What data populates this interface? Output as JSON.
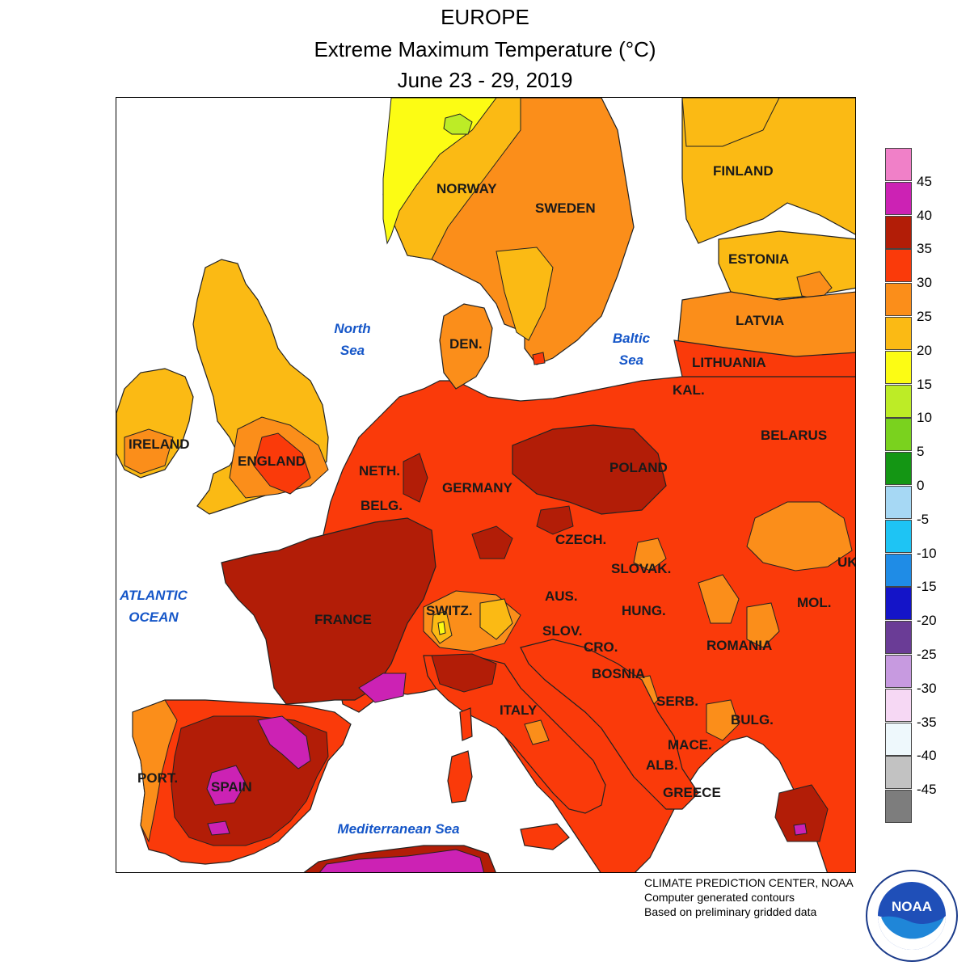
{
  "header": {
    "region": "EUROPE",
    "title": "Extreme Maximum Temperature (°C)",
    "period": "June 23 - 29, 2019"
  },
  "map": {
    "countries": [
      "NORWAY",
      "SWEDEN",
      "FINLAND",
      "ESTONIA",
      "LATVIA",
      "LITHUANIA",
      "KAL.",
      "DEN.",
      "IRELAND",
      "ENGLAND",
      "NETH.",
      "BELG.",
      "GERMANY",
      "POLAND",
      "BELARUS",
      "UK",
      "CZECH.",
      "SLOVAK.",
      "AUS.",
      "SWITZ.",
      "FRANCE",
      "HUNG.",
      "MOL.",
      "ROMANIA",
      "SLOV.",
      "CRO.",
      "BOSNIA",
      "SERB.",
      "BULG.",
      "MACE.",
      "ALB.",
      "GREECE",
      "ITALY",
      "PORT.",
      "SPAIN"
    ],
    "seas": [
      "North Sea",
      "Baltic Sea",
      "ATLANTIC OCEAN",
      "Mediterranean Sea"
    ],
    "colors": {
      "above_40": "#cc22b4",
      "35_40": "#b21d07",
      "30_35": "#fa3a0a",
      "25_30": "#fb8e1a",
      "20_25": "#fbba14",
      "15_20": "#fcfc14",
      "10_15": "#bdec26",
      "water": "#ffffff"
    }
  },
  "legend": {
    "labels": [
      "45",
      "40",
      "35",
      "30",
      "25",
      "20",
      "15",
      "10",
      "5",
      "0",
      "-5",
      "-10",
      "-15",
      "-20",
      "-25",
      "-30",
      "-35",
      "-40",
      "-45"
    ],
    "colors": [
      "#f080c8",
      "#cc22b4",
      "#b21d07",
      "#fa3a0a",
      "#fb8e1a",
      "#fbba14",
      "#fcfc14",
      "#bdec26",
      "#7ad21e",
      "#149614",
      "#a6d8f4",
      "#1ec4f4",
      "#1f8ce6",
      "#1414c8",
      "#6a3c96",
      "#c79ae0",
      "#f6d8f4",
      "#eef8fc",
      "#c2c2c2",
      "#7d7d7d"
    ]
  },
  "credit": {
    "line1": "CLIMATE PREDICTION CENTER, NOAA",
    "line2": "Computer generated contours",
    "line3": "Based on preliminary gridded data"
  },
  "logo": {
    "text": "NOAA",
    "icon": "noaa-logo-icon"
  }
}
